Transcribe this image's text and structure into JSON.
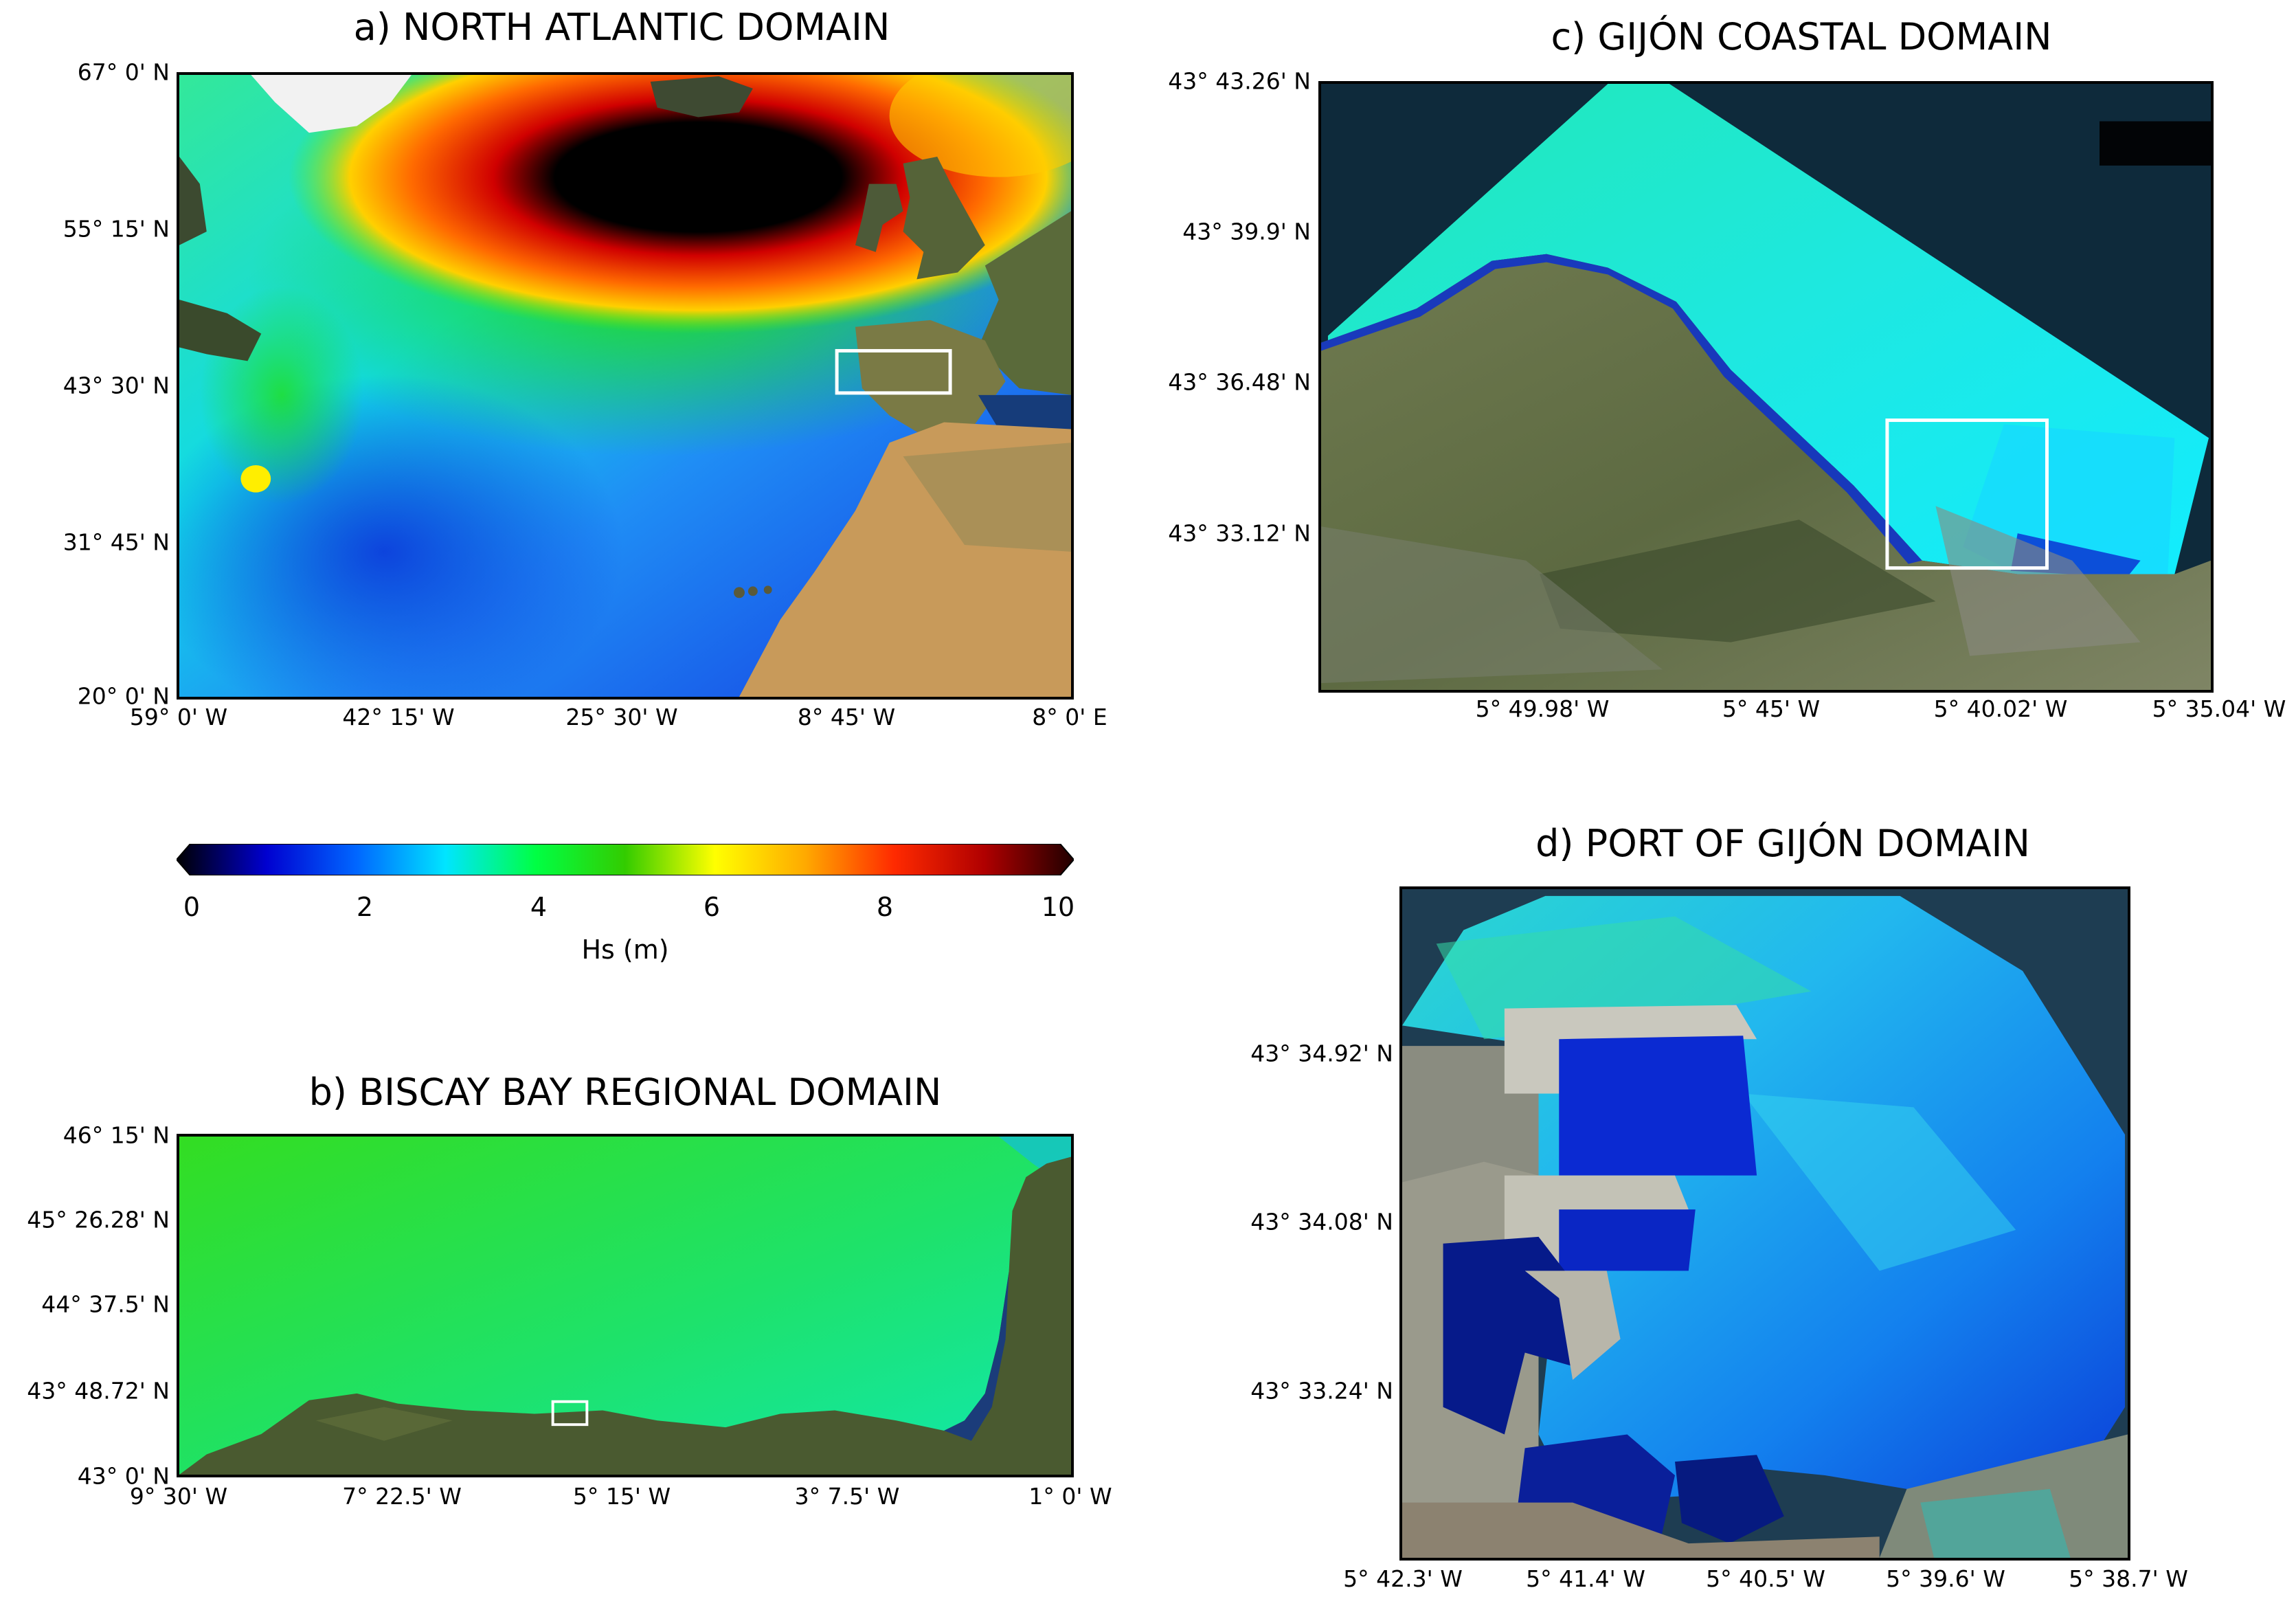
{
  "panels": {
    "a": {
      "title": "a) NORTH ATLANTIC DOMAIN",
      "y_ticks": [
        "67° 0' N",
        "55° 15' N",
        "43° 30' N",
        "31° 45' N",
        "20° 0' N"
      ],
      "x_ticks": [
        "59° 0' W",
        "42° 15' W",
        "25° 30' W",
        "8° 45' W",
        "8° 0' E"
      ]
    },
    "b": {
      "title": "b) BISCAY BAY REGIONAL DOMAIN",
      "y_ticks": [
        "46° 15' N",
        "45° 26.28' N",
        "44° 37.5' N",
        "43° 48.72' N",
        "43° 0' N"
      ],
      "x_ticks": [
        "9° 30' W",
        "7° 22.5' W",
        "5° 15' W",
        "3° 7.5' W",
        "1° 0' W"
      ]
    },
    "c": {
      "title": "c) GIJÓN COASTAL DOMAIN",
      "y_ticks": [
        "43° 43.26' N",
        "43° 39.9' N",
        "43° 36.48' N",
        "43° 33.12' N"
      ],
      "x_ticks": [
        "5° 49.98' W",
        "5° 45' W",
        "5° 40.02' W",
        "5° 35.04' W"
      ]
    },
    "d": {
      "title": "d) PORT OF GIJÓN DOMAIN",
      "y_ticks": [
        "43° 34.92' N",
        "43° 34.08' N",
        "43° 33.24' N"
      ],
      "x_ticks": [
        "5° 42.3' W",
        "5° 41.4' W",
        "5° 40.5' W",
        "5° 39.6' W",
        "5° 38.7' W"
      ]
    }
  },
  "colorbar": {
    "label": "Hs (m)",
    "ticks": [
      "0",
      "2",
      "4",
      "6",
      "8",
      "10"
    ],
    "range": [
      0,
      10
    ],
    "colors": [
      "#000000",
      "#0000d0",
      "#0066ff",
      "#00e5ff",
      "#00ff44",
      "#33cc00",
      "#ffff00",
      "#ffaa00",
      "#ff2a00",
      "#b00000",
      "#200000"
    ]
  }
}
